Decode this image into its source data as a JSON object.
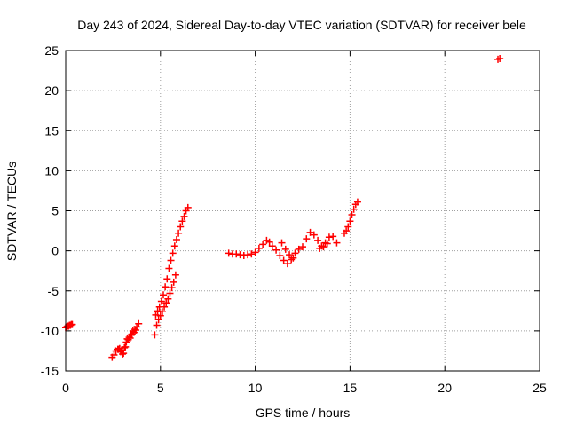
{
  "chart_data": {
    "type": "scatter",
    "title": "Day 243 of 2024, Sidereal Day-to-day VTEC variation (SDTVAR) for receiver bele",
    "xlabel": "GPS time / hours",
    "ylabel": "SDTVAR / TECUs",
    "xlim": [
      0,
      25
    ],
    "ylim": [
      -15,
      25
    ],
    "xticks": [
      0,
      5,
      10,
      15,
      20,
      25
    ],
    "yticks": [
      -15,
      -10,
      -5,
      0,
      5,
      10,
      15,
      20,
      25
    ],
    "xtick_labels": [
      "0",
      "5",
      "10",
      "15",
      "20",
      "25"
    ],
    "ytick_labels": [
      "-15",
      "-10",
      "-5",
      "0",
      "5",
      "10",
      "15",
      "20",
      "25"
    ],
    "grid": true,
    "marker": "plus",
    "color": "#ff0000",
    "series": [
      {
        "x": [
          0.0,
          0.05,
          0.1,
          0.15,
          0.2,
          0.25,
          0.3,
          0.35,
          2.45,
          2.55,
          2.65,
          2.75,
          2.85,
          2.95,
          3.05,
          3.15,
          3.25,
          3.35,
          3.45,
          3.55,
          3.65,
          3.75,
          3.85,
          2.8,
          2.9,
          3.0,
          3.1,
          3.2,
          3.3,
          3.4,
          3.5,
          3.6,
          3.7,
          4.7,
          4.8,
          4.9,
          5.0,
          5.1,
          5.2,
          5.3,
          5.4,
          5.5,
          5.6,
          5.7,
          5.8,
          4.75,
          4.85,
          4.95,
          5.05,
          5.15,
          5.25,
          5.35,
          5.45,
          5.55,
          5.65,
          5.75,
          5.85,
          5.95,
          6.05,
          6.15,
          6.25,
          6.35,
          6.45,
          8.6,
          8.8,
          9.0,
          9.2,
          9.4,
          9.6,
          9.8,
          10.0,
          10.2,
          10.4,
          10.6,
          10.75,
          10.9,
          11.1,
          11.3,
          11.5,
          11.7,
          11.9,
          12.1,
          11.4,
          11.6,
          11.8,
          12.0,
          12.3,
          12.5,
          12.7,
          12.9,
          13.1,
          13.3,
          13.5,
          13.7,
          13.9,
          14.1,
          14.3,
          13.4,
          13.6,
          13.8,
          14.7,
          14.8,
          14.9,
          15.0,
          15.1,
          15.2,
          15.3,
          15.4,
          22.8,
          22.9
        ],
        "y": [
          -9.6,
          -9.5,
          -9.4,
          -9.4,
          -9.3,
          -9.3,
          -9.2,
          -9.2,
          -13.3,
          -13.0,
          -12.5,
          -12.3,
          -12.2,
          -12.4,
          -12.8,
          -12.0,
          -11.0,
          -10.8,
          -10.5,
          -10.0,
          -9.8,
          -9.5,
          -9.1,
          -12.3,
          -12.6,
          -12.9,
          -12.1,
          -11.4,
          -11.1,
          -10.9,
          -10.4,
          -10.2,
          -9.9,
          -10.5,
          -9.3,
          -8.6,
          -8.1,
          -7.6,
          -7.0,
          -6.5,
          -6.0,
          -5.3,
          -4.6,
          -3.9,
          -3.0,
          -8.0,
          -7.5,
          -7.0,
          -6.3,
          -5.5,
          -4.5,
          -3.5,
          -2.2,
          -1.2,
          -0.3,
          0.6,
          1.4,
          2.2,
          3.0,
          3.7,
          4.3,
          5.0,
          5.4,
          -0.3,
          -0.4,
          -0.4,
          -0.5,
          -0.6,
          -0.5,
          -0.4,
          -0.2,
          0.3,
          0.8,
          1.3,
          1.1,
          0.6,
          0.1,
          -0.6,
          -1.2,
          -1.6,
          -1.1,
          -0.3,
          1.0,
          0.2,
          -0.5,
          -0.9,
          0.2,
          0.5,
          1.5,
          2.3,
          2.0,
          1.3,
          0.6,
          1.0,
          1.7,
          1.8,
          1.0,
          0.3,
          0.5,
          0.9,
          2.2,
          2.5,
          3.0,
          3.7,
          4.5,
          5.2,
          5.8,
          6.1,
          23.9,
          24.0
        ]
      }
    ]
  }
}
